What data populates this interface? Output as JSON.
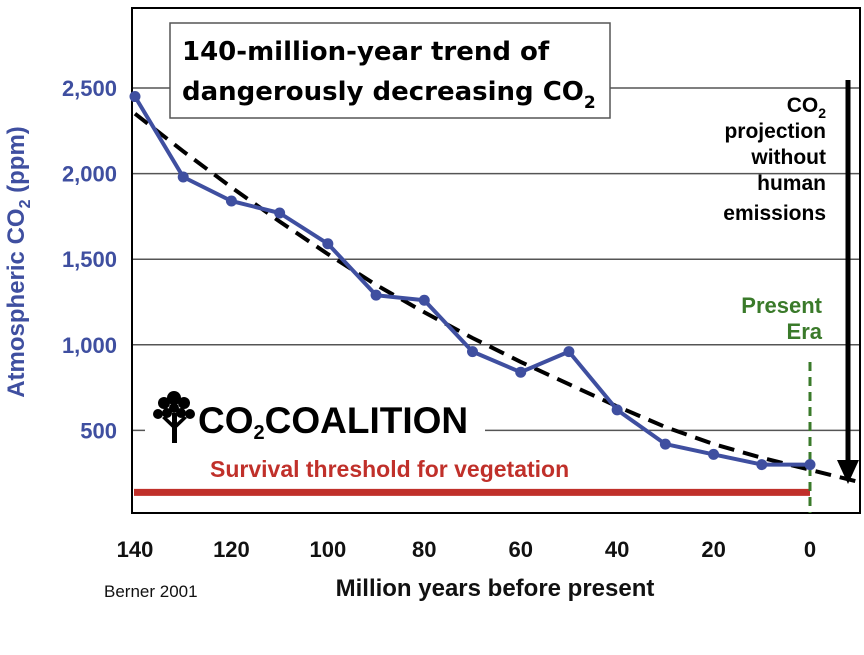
{
  "chart_data": {
    "type": "line",
    "title_line1": "140-million-year trend of",
    "title_line2_prefix": "dangerously decreasing CO",
    "title_line2_sub": "2",
    "xlabel": "Million years before present",
    "ylabel_prefix": "Atmospheric CO",
    "ylabel_sub": "2",
    "ylabel_suffix": " (ppm)",
    "x_ticks": [
      140,
      120,
      100,
      80,
      60,
      40,
      20,
      0
    ],
    "y_ticks": [
      500,
      1000,
      1500,
      2000,
      2500
    ],
    "y_tick_labels": [
      "500",
      "1,000",
      "1,500",
      "2,000",
      "2,500"
    ],
    "xlim": [
      140,
      -10
    ],
    "ylim": [
      0,
      2950
    ],
    "series": [
      {
        "name": "Berner CO2 reconstruction",
        "color": "#3f4fa0",
        "x": [
          140,
          130,
          120,
          110,
          100,
          90,
          80,
          70,
          60,
          50,
          40,
          30,
          20,
          10,
          0
        ],
        "y": [
          2450,
          1980,
          1840,
          1770,
          1590,
          1290,
          1260,
          960,
          840,
          960,
          620,
          420,
          360,
          300,
          300
        ]
      },
      {
        "name": "Trend line",
        "style": "dashed",
        "color": "#000000",
        "x": [
          140,
          130,
          120,
          110,
          100,
          90,
          80,
          70,
          60,
          50,
          40,
          30,
          20,
          10,
          0,
          -10
        ],
        "y": [
          2350,
          2130,
          1920,
          1720,
          1530,
          1350,
          1190,
          1040,
          900,
          770,
          640,
          520,
          420,
          340,
          270,
          200
        ]
      }
    ],
    "survival_threshold": {
      "label": "Survival threshold for vegetation",
      "value": 150,
      "color": "#c0302a"
    },
    "present_era": {
      "label_line1": "Present",
      "label_line2": "Era",
      "x": 0,
      "color": "#3a7a2a"
    },
    "projection": {
      "label_line1_prefix": "CO",
      "label_line1_sub": "2",
      "label_line2": "projection",
      "label_line3": "without",
      "label_line4": "human",
      "label_line5": "emissions"
    },
    "logo": {
      "prefix": "CO",
      "sub": "2",
      "suffix": "COALITION"
    },
    "source": "Berner 2001"
  }
}
